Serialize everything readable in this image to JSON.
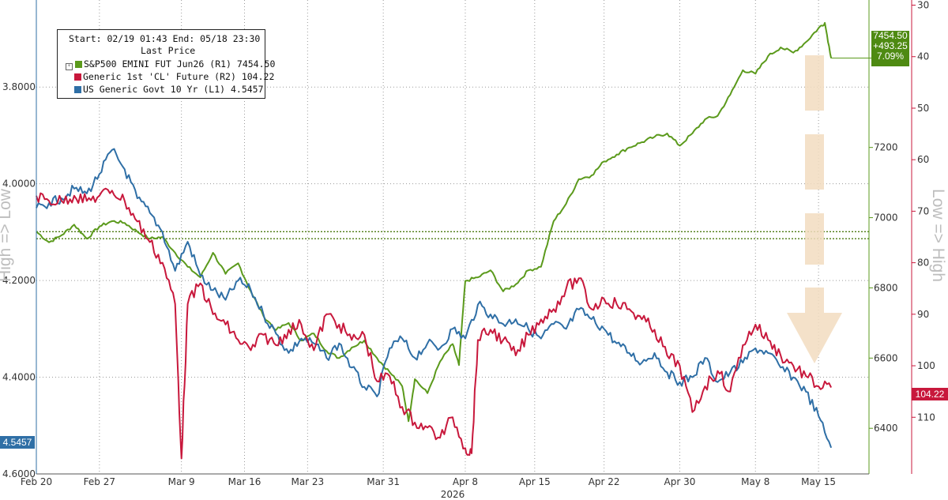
{
  "chart_data": {
    "type": "line",
    "legend": {
      "header": "Start: 02/19 01:43 End: 05/18 23:30",
      "subheader": "Last Price",
      "position": "top-left"
    },
    "series": [
      {
        "name": "S&P500 EMINI FUT Jun26",
        "axis": "R1",
        "last_value": "7454.50",
        "color": "#5b9a1c",
        "points": [
          [
            0,
            6960
          ],
          [
            2,
            6930
          ],
          [
            4,
            6950
          ],
          [
            6,
            6980
          ],
          [
            8,
            6940
          ],
          [
            10,
            6975
          ],
          [
            12,
            6990
          ],
          [
            14,
            6985
          ],
          [
            16,
            6960
          ],
          [
            18,
            6940
          ],
          [
            20,
            6945
          ],
          [
            22,
            6900
          ],
          [
            24,
            6860
          ],
          [
            26,
            6830
          ],
          [
            28,
            6900
          ],
          [
            30,
            6840
          ],
          [
            32,
            6870
          ],
          [
            34,
            6790
          ],
          [
            36,
            6720
          ],
          [
            38,
            6680
          ],
          [
            40,
            6700
          ],
          [
            42,
            6650
          ],
          [
            44,
            6670
          ],
          [
            46,
            6620
          ],
          [
            48,
            6600
          ],
          [
            50,
            6630
          ],
          [
            52,
            6650
          ],
          [
            54,
            6600
          ],
          [
            56,
            6560
          ],
          [
            58,
            6520
          ],
          [
            59,
            6420
          ],
          [
            60,
            6540
          ],
          [
            62,
            6500
          ],
          [
            64,
            6590
          ],
          [
            66,
            6640
          ],
          [
            67,
            6580
          ],
          [
            68,
            6820
          ],
          [
            70,
            6830
          ],
          [
            72,
            6850
          ],
          [
            74,
            6790
          ],
          [
            76,
            6810
          ],
          [
            78,
            6850
          ],
          [
            80,
            6860
          ],
          [
            82,
            6990
          ],
          [
            84,
            7040
          ],
          [
            86,
            7110
          ],
          [
            88,
            7120
          ],
          [
            90,
            7160
          ],
          [
            92,
            7180
          ],
          [
            94,
            7200
          ],
          [
            96,
            7215
          ],
          [
            98,
            7230
          ],
          [
            100,
            7240
          ],
          [
            102,
            7205
          ],
          [
            104,
            7240
          ],
          [
            106,
            7280
          ],
          [
            108,
            7290
          ],
          [
            110,
            7350
          ],
          [
            112,
            7420
          ],
          [
            114,
            7410
          ],
          [
            116,
            7460
          ],
          [
            118,
            7485
          ],
          [
            120,
            7470
          ],
          [
            122,
            7500
          ],
          [
            124,
            7540
          ],
          [
            125,
            7555
          ],
          [
            126,
            7454.5
          ]
        ]
      },
      {
        "name": "Generic 1st 'CL' Future",
        "axis": "R2",
        "last_value": "104.22",
        "color": "#c8183c",
        "points": [
          [
            0,
            67
          ],
          [
            2,
            68
          ],
          [
            4,
            68
          ],
          [
            6,
            67
          ],
          [
            8,
            68
          ],
          [
            10,
            67
          ],
          [
            12,
            66
          ],
          [
            14,
            68
          ],
          [
            16,
            72
          ],
          [
            18,
            76
          ],
          [
            20,
            80
          ],
          [
            22,
            88
          ],
          [
            23,
            118
          ],
          [
            24,
            88
          ],
          [
            26,
            84
          ],
          [
            28,
            90
          ],
          [
            30,
            92
          ],
          [
            32,
            95
          ],
          [
            34,
            97
          ],
          [
            36,
            94
          ],
          [
            38,
            96
          ],
          [
            40,
            93
          ],
          [
            42,
            92
          ],
          [
            44,
            97
          ],
          [
            46,
            90
          ],
          [
            48,
            92
          ],
          [
            50,
            95
          ],
          [
            52,
            94
          ],
          [
            54,
            103
          ],
          [
            56,
            102
          ],
          [
            58,
            108
          ],
          [
            60,
            111
          ],
          [
            62,
            112
          ],
          [
            64,
            114
          ],
          [
            66,
            110
          ],
          [
            68,
            116
          ],
          [
            69,
            117
          ],
          [
            70,
            95
          ],
          [
            72,
            93
          ],
          [
            74,
            95
          ],
          [
            76,
            98
          ],
          [
            78,
            94
          ],
          [
            80,
            91
          ],
          [
            82,
            89
          ],
          [
            84,
            85
          ],
          [
            86,
            83
          ],
          [
            88,
            89
          ],
          [
            90,
            87
          ],
          [
            92,
            88
          ],
          [
            94,
            89
          ],
          [
            96,
            91
          ],
          [
            98,
            93
          ],
          [
            100,
            98
          ],
          [
            102,
            100
          ],
          [
            104,
            109
          ],
          [
            106,
            104
          ],
          [
            108,
            101
          ],
          [
            110,
            105
          ],
          [
            112,
            96
          ],
          [
            114,
            92
          ],
          [
            116,
            95
          ],
          [
            118,
            98
          ],
          [
            120,
            100
          ],
          [
            122,
            102
          ],
          [
            124,
            104
          ],
          [
            126,
            104.22
          ]
        ]
      },
      {
        "name": "US Generic Govt 10 Yr",
        "axis": "L1",
        "last_value": "4.5457",
        "color": "#2f6fa6",
        "points": [
          [
            0,
            4.05
          ],
          [
            2,
            4.04
          ],
          [
            4,
            4.03
          ],
          [
            6,
            4.01
          ],
          [
            8,
            4.02
          ],
          [
            10,
            3.98
          ],
          [
            12,
            3.93
          ],
          [
            14,
            3.97
          ],
          [
            16,
            4.03
          ],
          [
            18,
            4.06
          ],
          [
            20,
            4.1
          ],
          [
            22,
            4.18
          ],
          [
            24,
            4.12
          ],
          [
            26,
            4.19
          ],
          [
            28,
            4.22
          ],
          [
            30,
            4.24
          ],
          [
            32,
            4.2
          ],
          [
            34,
            4.22
          ],
          [
            36,
            4.27
          ],
          [
            38,
            4.31
          ],
          [
            40,
            4.35
          ],
          [
            42,
            4.32
          ],
          [
            44,
            4.33
          ],
          [
            46,
            4.36
          ],
          [
            48,
            4.33
          ],
          [
            50,
            4.38
          ],
          [
            52,
            4.42
          ],
          [
            54,
            4.44
          ],
          [
            56,
            4.34
          ],
          [
            58,
            4.32
          ],
          [
            60,
            4.36
          ],
          [
            62,
            4.33
          ],
          [
            64,
            4.34
          ],
          [
            66,
            4.3
          ],
          [
            68,
            4.32
          ],
          [
            70,
            4.25
          ],
          [
            72,
            4.27
          ],
          [
            74,
            4.29
          ],
          [
            76,
            4.28
          ],
          [
            78,
            4.3
          ],
          [
            80,
            4.32
          ],
          [
            82,
            4.29
          ],
          [
            84,
            4.3
          ],
          [
            86,
            4.26
          ],
          [
            88,
            4.28
          ],
          [
            90,
            4.3
          ],
          [
            92,
            4.33
          ],
          [
            94,
            4.35
          ],
          [
            96,
            4.37
          ],
          [
            98,
            4.35
          ],
          [
            100,
            4.39
          ],
          [
            102,
            4.41
          ],
          [
            104,
            4.4
          ],
          [
            106,
            4.36
          ],
          [
            108,
            4.41
          ],
          [
            110,
            4.39
          ],
          [
            112,
            4.37
          ],
          [
            114,
            4.34
          ],
          [
            116,
            4.35
          ],
          [
            118,
            4.38
          ],
          [
            120,
            4.4
          ],
          [
            122,
            4.43
          ],
          [
            124,
            4.48
          ],
          [
            126,
            4.5457
          ]
        ]
      }
    ],
    "x": {
      "label": "2026",
      "ticks": [
        {
          "i": 0,
          "label": "Feb 20"
        },
        {
          "i": 10,
          "label": "Feb 27"
        },
        {
          "i": 23,
          "label": "Mar 9"
        },
        {
          "i": 33,
          "label": "Mar 16"
        },
        {
          "i": 43,
          "label": "Mar 23"
        },
        {
          "i": 55,
          "label": "Mar 31"
        },
        {
          "i": 68,
          "label": "Apr 8"
        },
        {
          "i": 79,
          "label": "Apr 15"
        },
        {
          "i": 90,
          "label": "Apr 22"
        },
        {
          "i": 102,
          "label": "Apr 30"
        },
        {
          "i": 114,
          "label": "May 8"
        },
        {
          "i": 124,
          "label": "May 15"
        }
      ],
      "range": [
        0,
        132
      ]
    },
    "y_left": {
      "ticks": [
        "3.8000",
        "4.0000",
        "4.2000",
        "4.4000",
        "4.6000"
      ],
      "tick_values": [
        3.8,
        4.0,
        4.2,
        4.4,
        4.6
      ],
      "range": [
        3.62,
        4.6
      ],
      "inverted": true,
      "side_label": "High => Low"
    },
    "y_right1": {
      "ticks": [
        "6400",
        "6600",
        "6800",
        "7000",
        "7200"
      ],
      "tick_values": [
        6400,
        6600,
        6800,
        7000,
        7200
      ],
      "range": [
        6270,
        7620
      ]
    },
    "y_right2": {
      "ticks": [
        "30",
        "40",
        "50",
        "60",
        "70",
        "80",
        "90",
        "100",
        "110"
      ],
      "tick_values": [
        30,
        40,
        50,
        60,
        70,
        80,
        90,
        100,
        110
      ],
      "range": [
        29,
        121
      ],
      "inverted": true,
      "side_label": "Low => High"
    },
    "flags": {
      "spx": {
        "value": "7454.50",
        "change": "+493.25",
        "pct": "7.09%"
      },
      "cl": {
        "value": "104.22"
      },
      "tny": {
        "value": "4.5457"
      }
    },
    "grid": true,
    "dotted_reference": {
      "values_r1": [
        6960,
        6940
      ],
      "color": "#4c7a10"
    }
  }
}
